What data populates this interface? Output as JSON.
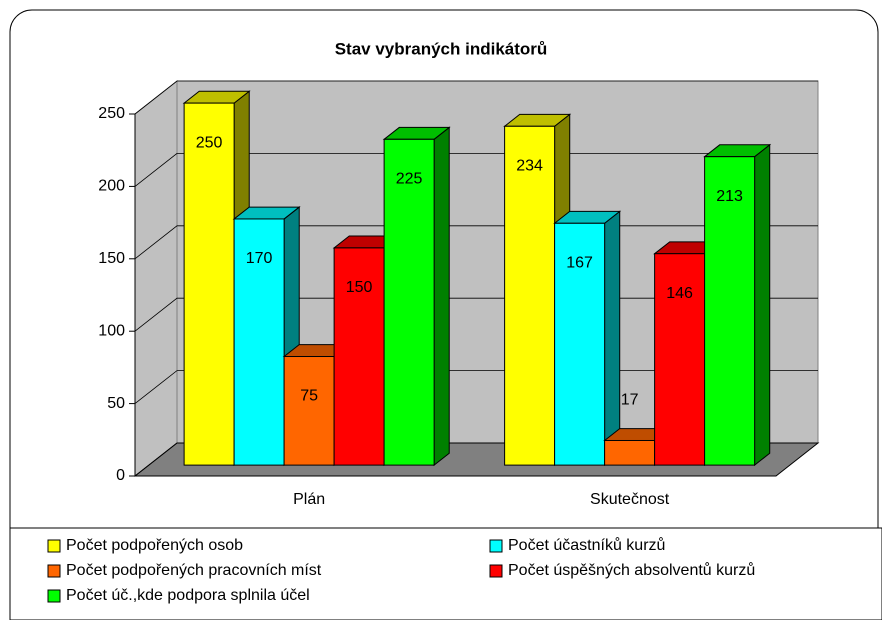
{
  "chart_data": {
    "type": "bar3d",
    "title": "Stav vybraných indikátorů",
    "categories": [
      "Plán",
      "Skutečnost"
    ],
    "series": [
      {
        "name": "Počet podpořených osob",
        "color": "#ffff00",
        "values": [
          250,
          234
        ]
      },
      {
        "name": "Počet účastníků kurzů",
        "color": "#00ffff",
        "values": [
          170,
          167
        ]
      },
      {
        "name": "Počet podpořených pracovních míst",
        "color": "#ff6600",
        "values": [
          75,
          17
        ]
      },
      {
        "name": "Počet úspěšných absolventů kurzů",
        "color": "#ff0000",
        "values": [
          150,
          146
        ]
      },
      {
        "name": "Počet úč.,kde podpora splnila účel",
        "color": "#00ff00",
        "values": [
          225,
          213
        ]
      }
    ],
    "ylim": [
      0,
      250
    ],
    "yticks": [
      0,
      50,
      100,
      150,
      200,
      250
    ],
    "grid": true,
    "legend": "bottom"
  }
}
